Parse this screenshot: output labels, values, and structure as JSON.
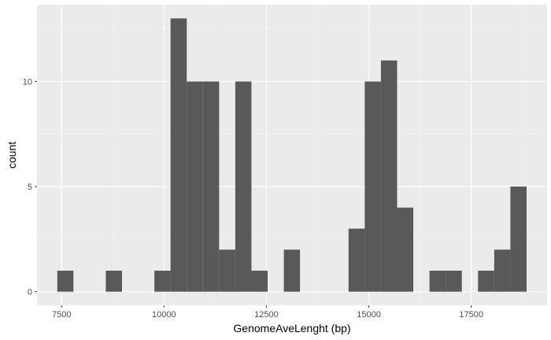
{
  "chart_data": {
    "type": "histogram",
    "title": "",
    "xlabel": "GenomeAveLenght (bp)",
    "ylabel": "count",
    "xlim": [
      6900,
      19350
    ],
    "ylim": [
      -0.65,
      13.65
    ],
    "x_ticks": [
      7500,
      10000,
      12500,
      15000,
      17500
    ],
    "x_tick_labels": [
      "7500",
      "10000",
      "12500",
      "15000",
      "17500"
    ],
    "y_ticks": [
      0,
      5,
      10
    ],
    "y_tick_labels": [
      "0",
      "5",
      "10"
    ],
    "bin_width": 395,
    "bins": [
      {
        "x0": 7395,
        "x1": 7790,
        "count": 1
      },
      {
        "x0": 8580,
        "x1": 8975,
        "count": 1
      },
      {
        "x0": 9765,
        "x1": 10160,
        "count": 1
      },
      {
        "x0": 10160,
        "x1": 10555,
        "count": 13
      },
      {
        "x0": 10555,
        "x1": 10950,
        "count": 10
      },
      {
        "x0": 10950,
        "x1": 11345,
        "count": 10
      },
      {
        "x0": 11345,
        "x1": 11740,
        "count": 2
      },
      {
        "x0": 11740,
        "x1": 12135,
        "count": 10
      },
      {
        "x0": 12135,
        "x1": 12530,
        "count": 1
      },
      {
        "x0": 12925,
        "x1": 13320,
        "count": 2
      },
      {
        "x0": 14505,
        "x1": 14900,
        "count": 3
      },
      {
        "x0": 14900,
        "x1": 15295,
        "count": 10
      },
      {
        "x0": 15295,
        "x1": 15690,
        "count": 11
      },
      {
        "x0": 15690,
        "x1": 16085,
        "count": 4
      },
      {
        "x0": 16480,
        "x1": 16875,
        "count": 1
      },
      {
        "x0": 16875,
        "x1": 17270,
        "count": 1
      },
      {
        "x0": 17665,
        "x1": 18060,
        "count": 1
      },
      {
        "x0": 18060,
        "x1": 18455,
        "count": 2
      },
      {
        "x0": 18455,
        "x1": 18850,
        "count": 5
      }
    ],
    "grid": true,
    "legend": "none",
    "colors": {
      "panel_background": "#ebebeb",
      "grid_major": "#ffffff",
      "grid_minor": "#f4f4f4",
      "bar_fill": "#595959",
      "tick_text": "#4d4d4d",
      "axis_title": "#000000"
    }
  }
}
